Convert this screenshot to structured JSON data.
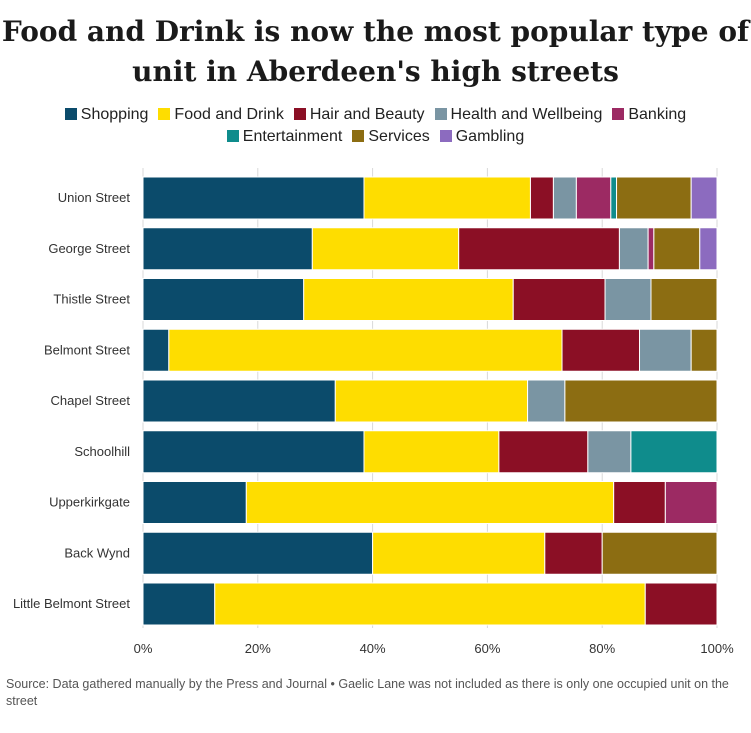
{
  "chart_data": {
    "type": "bar",
    "orientation": "horizontal",
    "stacked": true,
    "normalized": true,
    "title": "Food and Drink is now the most popular type of unit in Aberdeen's high streets",
    "source": "Source: Data gathered manually by the Press and Journal • Gaelic Lane was not included as there is only one occupied unit on the street",
    "categories": [
      "Union Street",
      "George Street",
      "Thistle Street",
      "Belmont Street",
      "Chapel Street",
      "Schoolhill",
      "Upperkirkgate",
      "Back Wynd",
      "Little Belmont Street"
    ],
    "x_ticks": [
      "0%",
      "20%",
      "40%",
      "60%",
      "80%",
      "100%"
    ],
    "xlim": [
      0,
      100
    ],
    "legend_position": "top",
    "grid": true,
    "series": [
      {
        "name": "Shopping",
        "color": "#0b4b6b",
        "values": [
          38.5,
          29.5,
          28,
          4.5,
          33.5,
          38.5,
          18,
          40,
          12.5
        ]
      },
      {
        "name": "Food and Drink",
        "color": "#fedd00",
        "values": [
          29,
          25.5,
          36.5,
          68.5,
          33.5,
          23.5,
          64,
          30,
          75
        ]
      },
      {
        "name": "Hair and Beauty",
        "color": "#8b0f25",
        "values": [
          4,
          28,
          16,
          13.5,
          0,
          15.5,
          9,
          10,
          12.5
        ]
      },
      {
        "name": "Health and Wellbeing",
        "color": "#7a95a3",
        "values": [
          4,
          5,
          8,
          9,
          6.5,
          7.5,
          0,
          0,
          0
        ]
      },
      {
        "name": "Banking",
        "color": "#9c2a63",
        "values": [
          6,
          1,
          0,
          0,
          0,
          0,
          9,
          0,
          0
        ]
      },
      {
        "name": "Entertainment",
        "color": "#0f8c8c",
        "values": [
          1,
          0,
          0,
          0,
          0,
          15,
          0,
          0,
          0
        ]
      },
      {
        "name": "Services",
        "color": "#8c6d12",
        "values": [
          13,
          8,
          11.5,
          4.5,
          26.5,
          0,
          0,
          20,
          0
        ]
      },
      {
        "name": "Gambling",
        "color": "#8c6bbf",
        "values": [
          4.5,
          3,
          0,
          0,
          0,
          0,
          0,
          0,
          0
        ]
      }
    ]
  }
}
